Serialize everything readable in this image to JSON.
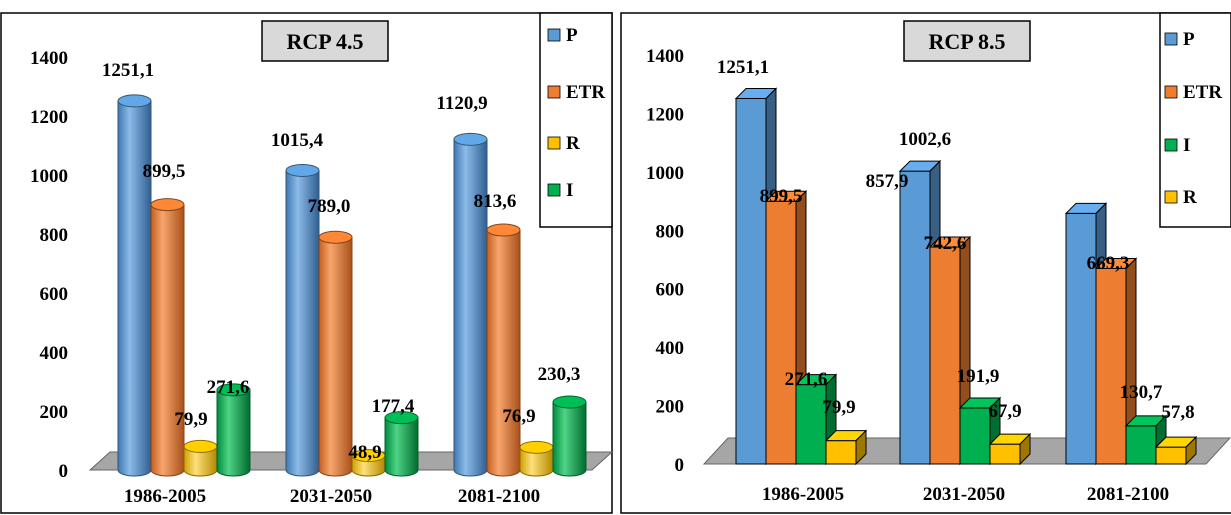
{
  "colors": {
    "P": "#5B9BD5",
    "ETR": "#ED7D31",
    "R": "#FFC000",
    "I": "#00B050",
    "floor": "#A6A6A6",
    "border": "#000000",
    "title_bg": "#D9D9D9"
  },
  "chart_data": [
    {
      "type": "bar",
      "title": "RCP 4.5",
      "categories": [
        "1986-2005",
        "2031-2050",
        "2081-2100"
      ],
      "series_order": [
        "P",
        "ETR",
        "R",
        "I"
      ],
      "series": [
        {
          "name": "P",
          "values": [
            1251.1,
            1015.4,
            1120.9
          ],
          "labels": [
            "1251,1",
            "1015,4",
            "1120,9"
          ]
        },
        {
          "name": "ETR",
          "values": [
            899.5,
            789.0,
            813.6
          ],
          "labels": [
            "899,5",
            "789,0",
            "813,6"
          ]
        },
        {
          "name": "R",
          "values": [
            79.9,
            48.9,
            76.9
          ],
          "labels": [
            "79,9",
            "48,9",
            "76,9"
          ]
        },
        {
          "name": "I",
          "values": [
            271.6,
            177.4,
            230.3
          ],
          "labels": [
            "271,6",
            "177,4",
            "230,3"
          ]
        }
      ],
      "legend": [
        "P",
        "ETR",
        "R",
        "I"
      ],
      "legend_position": "right",
      "yticks": [
        "0",
        "200",
        "400",
        "600",
        "800",
        "1000",
        "1200",
        "1400"
      ],
      "ylim": [
        0,
        1400
      ],
      "grid": false,
      "bar_shape": "cylinder"
    },
    {
      "type": "bar",
      "title": "RCP 8.5",
      "categories": [
        "1986-2005",
        "2031-2050",
        "2081-2100"
      ],
      "series_order": [
        "P",
        "ETR",
        "I",
        "R"
      ],
      "series": [
        {
          "name": "P",
          "values": [
            1251.1,
            1002.6,
            857.9
          ],
          "labels": [
            "1251,1",
            "1002,6",
            "857,9"
          ]
        },
        {
          "name": "ETR",
          "values": [
            899.5,
            742.6,
            669.3
          ],
          "labels": [
            "899,5",
            "742,6",
            "669,3"
          ]
        },
        {
          "name": "I",
          "values": [
            271.6,
            191.9,
            130.7
          ],
          "labels": [
            "271,6",
            "191,9",
            "130,7"
          ]
        },
        {
          "name": "R",
          "values": [
            79.9,
            67.9,
            57.8
          ],
          "labels": [
            "79,9",
            "67,9",
            "57,8"
          ]
        }
      ],
      "legend": [
        "P",
        "ETR",
        "I",
        "R"
      ],
      "legend_position": "right",
      "yticks": [
        "0",
        "200",
        "400",
        "600",
        "800",
        "1000",
        "1200",
        "1400"
      ],
      "ylim": [
        0,
        1400
      ],
      "grid": false,
      "bar_shape": "box"
    }
  ]
}
